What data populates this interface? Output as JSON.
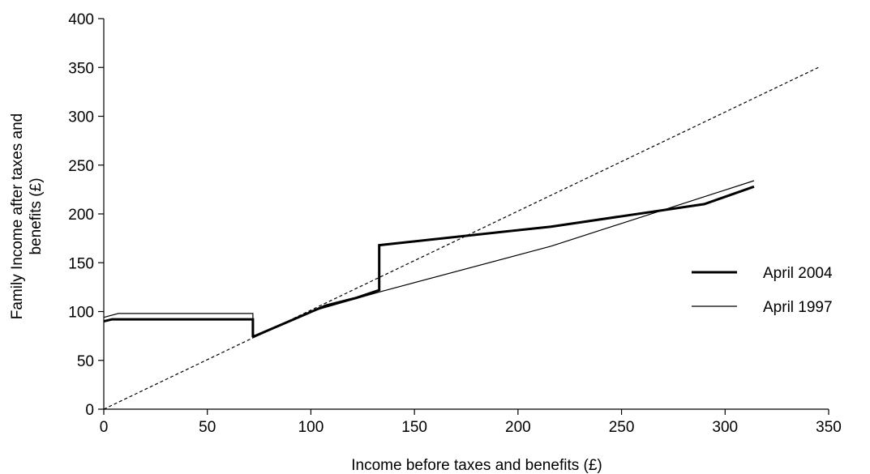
{
  "chart_data": {
    "type": "line",
    "title": "",
    "xlabel": "Income before taxes and benefits (£)",
    "ylabel": "Family Income after taxes and benefits (£)",
    "ylabel_lines": [
      "Family Income after taxes and",
      "benefits (£)"
    ],
    "xlim": [
      0,
      350
    ],
    "ylim": [
      0,
      400
    ],
    "xticks": [
      0,
      50,
      100,
      150,
      200,
      250,
      300,
      350
    ],
    "yticks": [
      0,
      50,
      100,
      150,
      200,
      250,
      300,
      350,
      400
    ],
    "grid": false,
    "legend_position": "right",
    "series": [
      {
        "name": "April 2004",
        "style": "thick",
        "color": "#000000",
        "x": [
          0,
          4,
          72,
          72,
          73,
          107,
          122,
          133,
          133,
          216,
          290,
          314
        ],
        "y": [
          90,
          92,
          92,
          75,
          75,
          106,
          114,
          122,
          168,
          187,
          210,
          228
        ]
      },
      {
        "name": "April 1997",
        "style": "thin",
        "color": "#000000",
        "x": [
          0,
          7,
          72,
          72,
          100,
          133,
          216,
          314
        ],
        "y": [
          94,
          98,
          98,
          73,
          100,
          120,
          167,
          234
        ]
      },
      {
        "style": "dashed",
        "color": "#000000",
        "x": [
          0,
          345
        ],
        "y": [
          0,
          350
        ]
      }
    ]
  }
}
